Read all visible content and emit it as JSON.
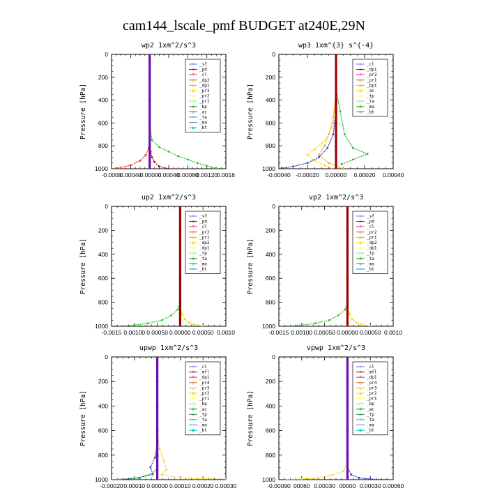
{
  "page_title": "cam144_lscale_pmf  BUDGET at240E,29N",
  "chart_data": [
    {
      "type": "line",
      "title": "wp2  1xm^2/s^3",
      "ylabel": "Pressure [hPa]",
      "xlim": [
        -0.0008,
        0.0016
      ],
      "ylim": [
        1000,
        0
      ],
      "xtick_labels": [
        "-0.0008",
        "0.00040",
        "-0.00000",
        "0.00040",
        "0.00080",
        "0.00120",
        "0.0016"
      ],
      "ytick_labels": [
        "0",
        "200",
        "400",
        "600",
        "800",
        "1000"
      ],
      "legend": [
        "_sf",
        "_pd",
        "_cl",
        "_dp2",
        "_dp1",
        "_pr3",
        "_pr2",
        "_pr1",
        "_bp",
        "_ac",
        "_ta",
        "_ma",
        "_bt"
      ],
      "series": [
        {
          "color": "#a00000",
          "x": [
            0,
            0,
            0,
            0,
            0,
            0,
            2e-05,
            5e-05,
            0.0001,
            0.0002,
            0.0004
          ],
          "y": [
            0,
            200,
            400,
            600,
            700,
            800,
            850,
            900,
            940,
            980,
            1000
          ]
        },
        {
          "color": "#ff2020",
          "x": [
            0,
            0,
            0,
            0,
            -2e-05,
            -8e-05,
            -0.0002,
            -0.0004,
            -0.0007
          ],
          "y": [
            0,
            300,
            600,
            750,
            820,
            880,
            930,
            970,
            995
          ]
        },
        {
          "color": "#22cc22",
          "x": [
            0,
            0,
            5e-05,
            0.0002,
            0.0004,
            0.0006,
            0.0008,
            0.001,
            0.0012,
            0.0014
          ],
          "y": [
            0,
            600,
            750,
            810,
            850,
            890,
            920,
            950,
            975,
            995
          ]
        },
        {
          "color": "#6a0dad",
          "x": [
            0,
            0,
            0,
            0,
            0,
            0
          ],
          "y": [
            0,
            200,
            400,
            600,
            800,
            1000
          ]
        }
      ]
    },
    {
      "type": "line",
      "title": "wp3  1xm^{3} s^{-4}",
      "ylabel": "Pressure [hPa]",
      "xlim": [
        -0.0004,
        0.0004
      ],
      "ylim": [
        1000,
        0
      ],
      "xtick_labels": [
        "-0.00040",
        "-0.00020",
        "0.00000",
        "0.00020",
        "0.00040"
      ],
      "ytick_labels": [
        "0",
        "200",
        "400",
        "600",
        "800",
        "1000"
      ],
      "legend": [
        "_cl",
        "_dp1",
        "_pr2",
        "_pr1",
        "_bp1",
        "_ac",
        "_tp",
        "_ta",
        "_ma",
        "_bt"
      ],
      "series": [
        {
          "color": "#ffd700",
          "x": [
            0,
            0,
            -2e-05,
            -5e-05,
            -0.0001,
            -0.00015,
            -0.0002,
            -0.00015,
            -8e-05,
            -3e-05
          ],
          "y": [
            0,
            400,
            550,
            700,
            780,
            830,
            880,
            930,
            970,
            1000
          ]
        },
        {
          "color": "#ff9f1c",
          "x": [
            0,
            -2e-05,
            -8e-05,
            -0.00012,
            -5e-05,
            5e-05
          ],
          "y": [
            300,
            600,
            800,
            880,
            950,
            1000
          ]
        },
        {
          "color": "#22aa22",
          "x": [
            0,
            3e-05,
            6e-05,
            0.00012,
            0.00022,
            0.00012,
            4e-05
          ],
          "y": [
            300,
            500,
            700,
            820,
            870,
            920,
            960
          ]
        },
        {
          "color": "#1f3fbf",
          "x": [
            0,
            -2e-05,
            -6e-05,
            -0.00012,
            -0.0002,
            -0.0003,
            -0.00038
          ],
          "y": [
            500,
            700,
            820,
            900,
            950,
            980,
            995
          ]
        },
        {
          "color": "#a00000",
          "x": [
            0,
            0,
            0,
            0,
            0,
            0
          ],
          "y": [
            0,
            200,
            400,
            600,
            800,
            1000
          ]
        }
      ]
    },
    {
      "type": "line",
      "title": "up2  1xm^2/s^3",
      "ylabel": "Pressure [hPa]",
      "xlim": [
        -0.0015,
        0.001
      ],
      "ylim": [
        1000,
        0
      ],
      "xtick_labels": [
        "-0.0015",
        "0.00100",
        "0.00050",
        "0.00000",
        "0.00050",
        "0.0010"
      ],
      "ytick_labels": [
        "0",
        "200",
        "400",
        "600",
        "800",
        "1000"
      ],
      "legend": [
        "_sf",
        "_pd",
        "_cl",
        "_pr2",
        "_pr1",
        "_dp2",
        "_dp1",
        "_tp",
        "_ta",
        "_ma",
        "_bt"
      ],
      "series": [
        {
          "color": "#22cc22",
          "x": [
            0,
            -5e-05,
            -0.0002,
            -0.0004,
            -0.0007,
            -0.001,
            -0.0013
          ],
          "y": [
            800,
            860,
            910,
            950,
            975,
            990,
            1000
          ]
        },
        {
          "color": "#ffd700",
          "x": [
            0,
            5e-05,
            0.0001,
            0.0002,
            0.0003,
            0.0005
          ],
          "y": [
            850,
            900,
            940,
            970,
            985,
            1000
          ]
        },
        {
          "color": "#a00000",
          "x": [
            0,
            0,
            0,
            0,
            0,
            0
          ],
          "y": [
            0,
            200,
            400,
            600,
            800,
            1000
          ]
        }
      ]
    },
    {
      "type": "line",
      "title": "vp2  1xm^2/s^3",
      "ylabel": "Pressure [hPa]",
      "xlim": [
        -0.0015,
        0.001
      ],
      "ylim": [
        1000,
        0
      ],
      "xtick_labels": [
        "-0.0015",
        "0.00100",
        "0.00050",
        "0.00000",
        "0.00050",
        "0.0010"
      ],
      "ytick_labels": [
        "0",
        "200",
        "400",
        "600",
        "800",
        "1000"
      ],
      "legend": [
        "_sf",
        "_pd",
        "_cl",
        "_pr2",
        "_pr1",
        "_dp2",
        "_dp1",
        "_tp",
        "_ta",
        "_ma",
        "_bt"
      ],
      "series": [
        {
          "color": "#22cc22",
          "x": [
            0,
            -5e-05,
            -0.0002,
            -0.0004,
            -0.0007,
            -0.001,
            -0.0013
          ],
          "y": [
            800,
            860,
            910,
            950,
            975,
            990,
            1000
          ]
        },
        {
          "color": "#ffd700",
          "x": [
            0,
            5e-05,
            0.0001,
            0.0002,
            0.0003,
            0.0005
          ],
          "y": [
            850,
            900,
            940,
            970,
            985,
            1000
          ]
        },
        {
          "color": "#a00000",
          "x": [
            0,
            0,
            0,
            0,
            0,
            0
          ],
          "y": [
            0,
            200,
            400,
            600,
            800,
            1000
          ]
        }
      ]
    },
    {
      "type": "line",
      "title": "upwp  1xm^2/s^3",
      "ylabel": "Pressure [hPa]",
      "xlim": [
        -0.0002,
        0.0003
      ],
      "ylim": [
        1000,
        0
      ],
      "xtick_labels": [
        "-0.00020",
        "0.00010",
        "0.00000",
        "0.00010",
        "0.00020",
        "0.00030"
      ],
      "ytick_labels": [
        "0",
        "200",
        "400",
        "600",
        "800",
        "1000"
      ],
      "legend": [
        "_cl",
        "_mfl",
        "_dp1",
        "_pr4",
        "_pr3",
        "_pr2",
        "_pr1",
        "_bp",
        "_ac",
        "_tp",
        "_ta",
        "_ma",
        "_bt"
      ],
      "series": [
        {
          "color": "#ffd700",
          "x": [
            0,
            1e-05,
            3e-05,
            4e-05,
            2e-05,
            0.0001,
            0.0003
          ],
          "y": [
            600,
            750,
            850,
            920,
            960,
            985,
            995
          ]
        },
        {
          "color": "#1f3fbf",
          "x": [
            0,
            -1e-05,
            -3e-05,
            -2e-05,
            -8e-05,
            -0.00015
          ],
          "y": [
            700,
            820,
            900,
            950,
            985,
            998
          ]
        },
        {
          "color": "#22cc22",
          "x": [
            0,
            -2e-05,
            -0.0001,
            -0.0002
          ],
          "y": [
            900,
            960,
            990,
            1000
          ]
        },
        {
          "color": "#6a0dad",
          "x": [
            0,
            0,
            0,
            0,
            0,
            0
          ],
          "y": [
            0,
            200,
            400,
            600,
            800,
            1000
          ]
        }
      ]
    },
    {
      "type": "line",
      "title": "vpwp  1xm^2/s^3",
      "ylabel": "Pressure [hPa]",
      "xlim": [
        -0.0009,
        0.0006
      ],
      "ylim": [
        1000,
        0
      ],
      "xtick_labels": [
        "-0.00090",
        "00060",
        "0.00030",
        "00000",
        "0.00030",
        "0.00060"
      ],
      "ytick_labels": [
        "0",
        "200",
        "400",
        "600",
        "800",
        "1000"
      ],
      "legend": [
        "_cl",
        "_mfl",
        "_dp1",
        "_pr4",
        "_pr3",
        "_pr2",
        "_pr1",
        "_bp",
        "_ac",
        "_tp",
        "_ta",
        "_ma",
        "_bt"
      ],
      "series": [
        {
          "color": "#ffd700",
          "x": [
            0,
            -5e-05,
            -0.0002,
            -0.0004,
            -0.0006,
            -0.0008
          ],
          "y": [
            850,
            930,
            965,
            985,
            995,
            1000
          ]
        },
        {
          "color": "#1f3fbf",
          "x": [
            0,
            5e-05,
            0.00015,
            0.0003,
            0.0005
          ],
          "y": [
            900,
            960,
            985,
            995,
            1000
          ]
        },
        {
          "color": "#6a0dad",
          "x": [
            0,
            0,
            0,
            0,
            0,
            0
          ],
          "y": [
            0,
            200,
            400,
            600,
            800,
            1000
          ]
        }
      ]
    }
  ]
}
